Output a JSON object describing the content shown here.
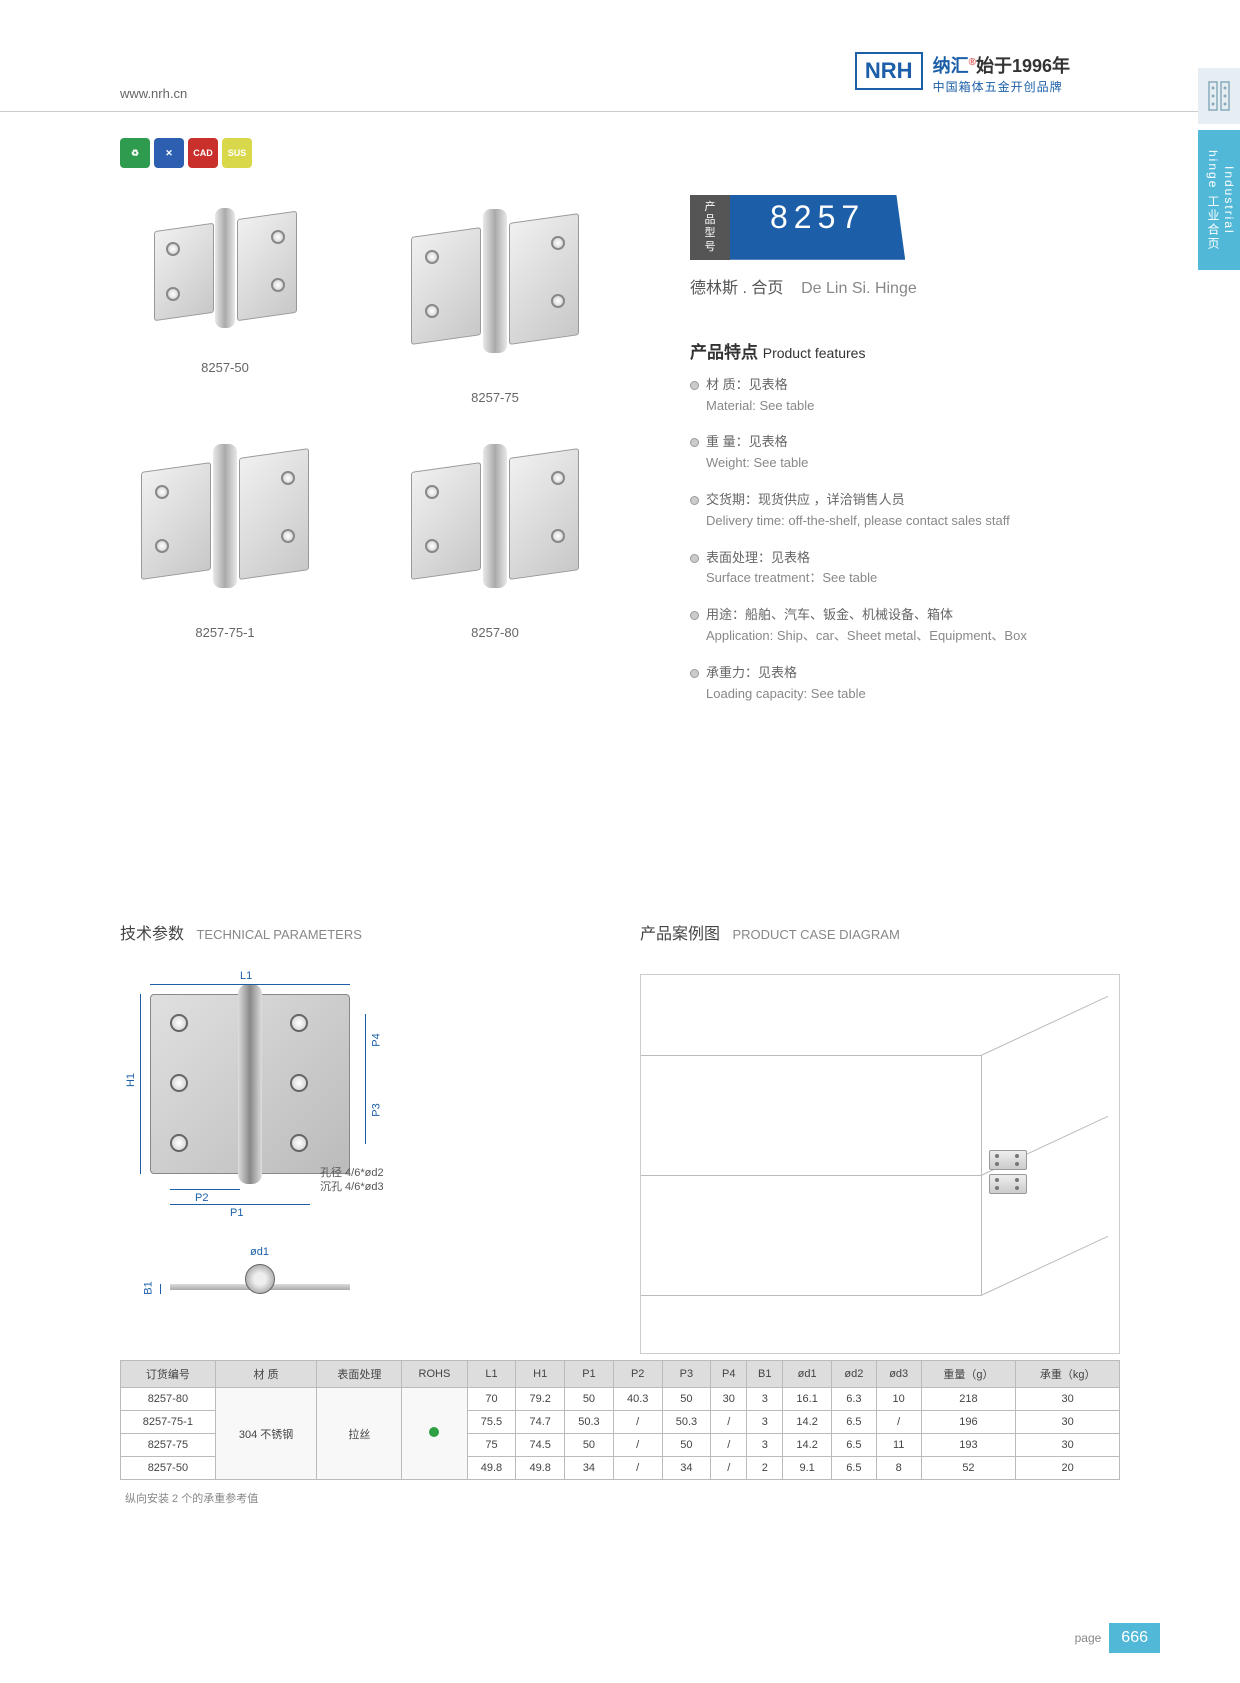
{
  "header": {
    "url": "www.nrh.cn",
    "logo_mark": "NRH",
    "brand_cn": "纳汇",
    "reg": "®",
    "since": "始于1996年",
    "tagline": "中国箱体五金开创品牌"
  },
  "side_tab": {
    "cn": "工业合页",
    "en": "Industrial hinge"
  },
  "badges": [
    {
      "label": "",
      "color": "#2e9b4f"
    },
    {
      "label": "",
      "color": "#2d5fb0"
    },
    {
      "label": "CAD",
      "color": "#c9302c"
    },
    {
      "label": "SUS",
      "color": "#d8d84a"
    }
  ],
  "model": {
    "tag_label": "产品\n型号",
    "number": "8257",
    "subtitle_cn": "德林斯 . 合页",
    "subtitle_en": "De Lin Si. Hinge"
  },
  "products": [
    {
      "label": "8257-50"
    },
    {
      "label": "8257-75"
    },
    {
      "label": "8257-75-1"
    },
    {
      "label": "8257-80"
    }
  ],
  "features": {
    "title_cn": "产品特点",
    "title_en": "Product features",
    "items": [
      {
        "cn": "材 质：见表格",
        "en": "Material: See table"
      },
      {
        "cn": "重 量：见表格",
        "en": "Weight: See table"
      },
      {
        "cn": "交货期：现货供应 ，详洽销售人员",
        "en": "Delivery time: off-the-shelf, please contact sales staff"
      },
      {
        "cn": "表面处理：见表格",
        "en": "Surface treatment：See table"
      },
      {
        "cn": "用途：船舶、汽车、钣金、机械设备、箱体",
        "en": "Application: Ship、car、Sheet metal、Equipment、Box"
      },
      {
        "cn": "承重力：见表格",
        "en": "Loading capacity: See table"
      }
    ]
  },
  "tech": {
    "title_cn": "技术参数",
    "title_en": "TECHNICAL PARAMETERS",
    "dims": {
      "L1": "L1",
      "H1": "H1",
      "P1": "P1",
      "P2": "P2",
      "P3": "P3",
      "P4": "P4",
      "B1": "B1",
      "od1": "ød1"
    },
    "hole_note1": "孔径 4/6*ød2",
    "hole_note2": "沉孔 4/6*ød3"
  },
  "case": {
    "title_cn": "产品案例图",
    "title_en": "PRODUCT CASE DIAGRAM"
  },
  "table": {
    "columns": [
      "订货编号",
      "材 质",
      "表面处理",
      "ROHS",
      "L1",
      "H1",
      "P1",
      "P2",
      "P3",
      "P4",
      "B1",
      "ød1",
      "ød2",
      "ød3",
      "重量（g）",
      "承重（kg）"
    ],
    "material": "304 不锈钢",
    "surface": "拉丝",
    "rows": [
      {
        "id": "8257-80",
        "L1": "70",
        "H1": "79.2",
        "P1": "50",
        "P2": "40.3",
        "P3": "50",
        "P4": "30",
        "B1": "3",
        "od1": "16.1",
        "od2": "6.3",
        "od3": "10",
        "wt": "218",
        "load": "30"
      },
      {
        "id": "8257-75-1",
        "L1": "75.5",
        "H1": "74.7",
        "P1": "50.3",
        "P2": "/",
        "P3": "50.3",
        "P4": "/",
        "B1": "3",
        "od1": "14.2",
        "od2": "6.5",
        "od3": "/",
        "wt": "196",
        "load": "30"
      },
      {
        "id": "8257-75",
        "L1": "75",
        "H1": "74.5",
        "P1": "50",
        "P2": "/",
        "P3": "50",
        "P4": "/",
        "B1": "3",
        "od1": "14.2",
        "od2": "6.5",
        "od3": "11",
        "wt": "193",
        "load": "30"
      },
      {
        "id": "8257-50",
        "L1": "49.8",
        "H1": "49.8",
        "P1": "34",
        "P2": "/",
        "P3": "34",
        "P4": "/",
        "B1": "2",
        "od1": "9.1",
        "od2": "6.5",
        "od3": "8",
        "wt": "52",
        "load": "20"
      }
    ],
    "note": "纵向安装 2 个的承重参考值"
  },
  "footer": {
    "page_label": "page",
    "page_number": "666"
  },
  "colors": {
    "brand_blue": "#1c5fa8",
    "cyan": "#52b8d8",
    "rohs_green": "#2ea043"
  }
}
